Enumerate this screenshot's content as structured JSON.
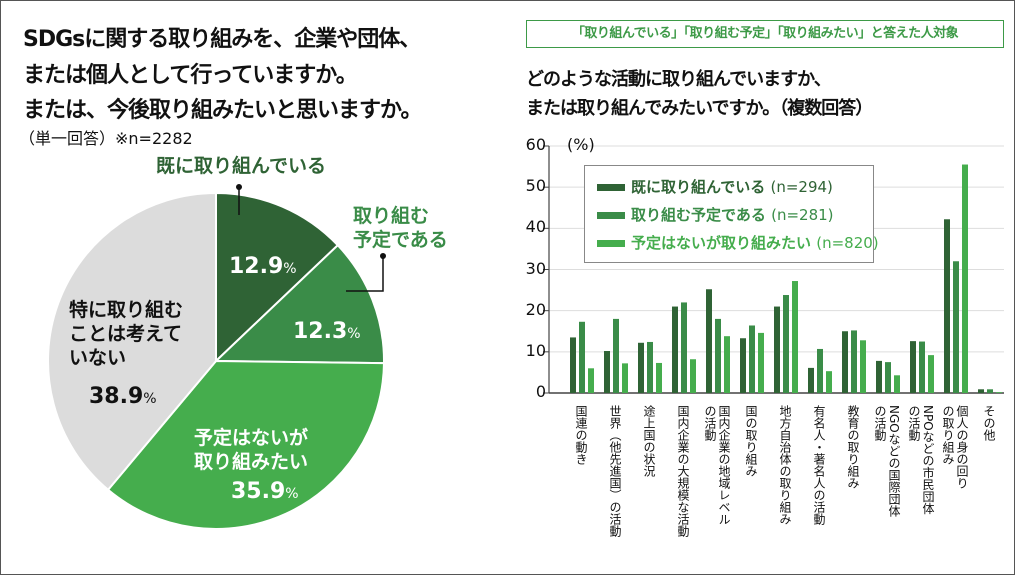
{
  "left": {
    "title_lines": [
      "SDGsに関する取り組みを、企業や団体、",
      "または個人として行っていますか。",
      "または、今後取り組みたいと思いますか。"
    ],
    "note": "（単一回答）※n=2282"
  },
  "right": {
    "badge": "「取り組んでいる」「取り組む予定」「取り組みたい」と答えた人対象",
    "title_lines": [
      "どのような活動に取り組んでいますか、",
      "または取り組んでみたいですか。（複数回答）"
    ]
  },
  "chart_data": [
    {
      "type": "pie",
      "slices": [
        {
          "label": "既に取り組んでいる",
          "value": 12.9,
          "display": "12.9",
          "color": "#2f6335"
        },
        {
          "label": "取り組む予定である",
          "value": 12.3,
          "display": "12.3",
          "color": "#3a8c48"
        },
        {
          "label": "予定はないが取り組みたい",
          "value": 35.9,
          "display": "35.9",
          "color": "#45ad4d"
        },
        {
          "label": "特に取り組むことは考えていない",
          "value": 38.9,
          "display": "38.9",
          "color": "#dcdcdc"
        }
      ],
      "outside_labels": [
        "既に取り組んでいる",
        "取り組む\n予定である"
      ],
      "inside_labels": [
        "予定はないが\n取り組みたい",
        "特に取り組む\nことは考えて\nいない"
      ],
      "unit": "%"
    },
    {
      "type": "bar",
      "ylabel": "(%)",
      "ylim": [
        0,
        60
      ],
      "yticks": [
        0,
        10,
        20,
        30,
        40,
        50,
        60
      ],
      "grid": true,
      "legend_position": "top-left",
      "categories": [
        "国連の動き",
        "世界（他先進国）の活動",
        "途上国の状況",
        "国内企業の大規模な活動",
        "国内企業の地域レベル\nの活動",
        "国の取り組み",
        "地方自治体の取り組み",
        "有名人・著名人の活動",
        "教育の取り組み",
        "NGOなどの国際団体\nの活動",
        "NPOなどの市民団体\nの活動",
        "個人の身の回り\nの取り組み",
        "その他"
      ],
      "series": [
        {
          "name": "既に取り組んでいる",
          "n": "(n=294)",
          "color": "#2f6335",
          "values": [
            13.5,
            10.2,
            12.2,
            21,
            25.2,
            13.3,
            21,
            6.1,
            15,
            7.8,
            12.6,
            42.2,
            0.9
          ]
        },
        {
          "name": "取り組む予定である",
          "n": "(n=281)",
          "color": "#3a8c48",
          "values": [
            17.3,
            18,
            12.4,
            22,
            18,
            16.4,
            23.8,
            10.7,
            15.2,
            7.5,
            12.5,
            32,
            0.9
          ]
        },
        {
          "name": "予定はないが取り組みたい",
          "n": "(n=820)",
          "color": "#45ad4d",
          "values": [
            6,
            7.2,
            7.3,
            8.2,
            13.8,
            14.6,
            27.2,
            5.3,
            12.8,
            4.3,
            9.2,
            55.5,
            0.2
          ]
        }
      ]
    }
  ]
}
